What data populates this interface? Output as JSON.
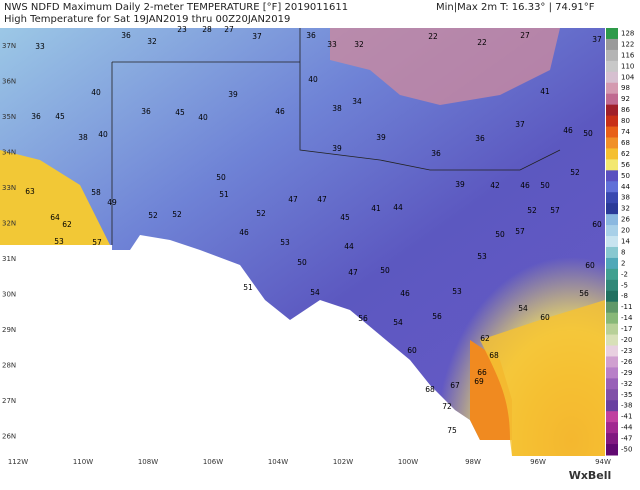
{
  "header": {
    "line1": "NWS NDFD Maximum Daily 2-meter TEMPERATURE [°F]  2019011611",
    "minmax": "Min|Max 2m T: 16.33°  |  74.91°F",
    "line2": "High Temperature for Sat 19JAN2019 thru 00Z20JAN2019"
  },
  "lat_labels": [
    "37N",
    "36N",
    "35N",
    "34N",
    "33N",
    "32N",
    "31N",
    "30N",
    "29N",
    "28N",
    "27N",
    "26N"
  ],
  "lon_labels": [
    "112W",
    "110W",
    "108W",
    "106W",
    "104W",
    "102W",
    "100W",
    "98W",
    "96W",
    "94W"
  ],
  "colorbar": {
    "labels": [
      "128",
      "122",
      "116",
      "110",
      "104",
      "98",
      "92",
      "86",
      "80",
      "74",
      "68",
      "62",
      "56",
      "50",
      "44",
      "38",
      "32",
      "26",
      "20",
      "14",
      "8",
      "2",
      "-2",
      "-5",
      "-8",
      "-11",
      "-14",
      "-17",
      "-20",
      "-23",
      "-26",
      "-29",
      "-32",
      "-35",
      "-38",
      "-41",
      "-44",
      "-47",
      "-50"
    ]
  },
  "stations": [
    "36",
    "32",
    "23",
    "28",
    "27",
    "37",
    "36",
    "33",
    "32",
    "22",
    "22",
    "27",
    "37",
    "33",
    "40",
    "45",
    "36",
    "38",
    "40",
    "36",
    "45",
    "40",
    "39",
    "46",
    "40",
    "38",
    "34",
    "39",
    "36",
    "36",
    "37",
    "41",
    "46",
    "50",
    "63",
    "58",
    "64",
    "62",
    "53",
    "57",
    "49",
    "52",
    "52",
    "50",
    "51",
    "52",
    "46",
    "47",
    "47",
    "39",
    "45",
    "41",
    "44",
    "39",
    "42",
    "46",
    "50",
    "52",
    "52",
    "57",
    "53",
    "50",
    "51",
    "54",
    "47",
    "50",
    "44",
    "46",
    "53",
    "53",
    "50",
    "57",
    "60",
    "60",
    "56",
    "56",
    "54",
    "56",
    "54",
    "60",
    "60",
    "62",
    "66",
    "67",
    "68",
    "72",
    "75",
    "69",
    "68"
  ],
  "logo": "WxBell"
}
